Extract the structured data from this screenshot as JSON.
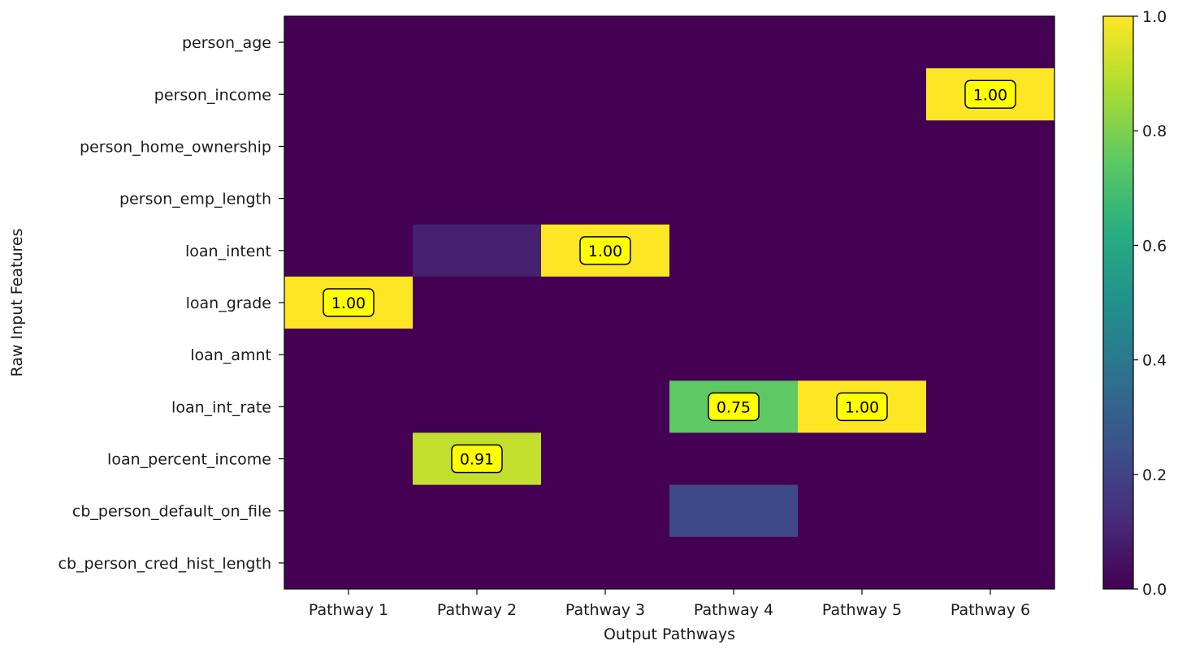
{
  "chart_data": {
    "type": "heatmap",
    "title": "",
    "xlabel": "Output Pathways",
    "ylabel": "Raw Input Features",
    "x_categories": [
      "Pathway 1",
      "Pathway 2",
      "Pathway 3",
      "Pathway 4",
      "Pathway 5",
      "Pathway 6"
    ],
    "y_categories": [
      "person_age",
      "person_income",
      "person_home_ownership",
      "person_emp_length",
      "loan_intent",
      "loan_grade",
      "loan_amnt",
      "loan_int_rate",
      "loan_percent_income",
      "cb_person_default_on_file",
      "cb_person_cred_hist_length"
    ],
    "values": [
      [
        0,
        0,
        0,
        0,
        0,
        0
      ],
      [
        0,
        0,
        0,
        0,
        0,
        1.0
      ],
      [
        0,
        0,
        0,
        0,
        0,
        0
      ],
      [
        0,
        0,
        0,
        0,
        0,
        0
      ],
      [
        0,
        0.09,
        1.0,
        0,
        0,
        0
      ],
      [
        1.0,
        0,
        0,
        0,
        0,
        0
      ],
      [
        0,
        0,
        0,
        0,
        0,
        0
      ],
      [
        0,
        0,
        0,
        0.75,
        1.0,
        0
      ],
      [
        0,
        0.91,
        0,
        0,
        0,
        0
      ],
      [
        0,
        0,
        0,
        0.22,
        0,
        0
      ],
      [
        0,
        0,
        0,
        0,
        0,
        0
      ]
    ],
    "annotations": [
      {
        "row": 1,
        "col": 5,
        "text": "1.00"
      },
      {
        "row": 4,
        "col": 2,
        "text": "1.00"
      },
      {
        "row": 5,
        "col": 0,
        "text": "1.00"
      },
      {
        "row": 7,
        "col": 3,
        "text": "0.75"
      },
      {
        "row": 7,
        "col": 4,
        "text": "1.00"
      },
      {
        "row": 8,
        "col": 1,
        "text": "0.91"
      }
    ],
    "colormap": "viridis",
    "vmin": 0.0,
    "vmax": 1.0,
    "colorbar_ticks": [
      "0.0",
      "0.2",
      "0.4",
      "0.6",
      "0.8",
      "1.0"
    ],
    "colorbar_tick_values": [
      0.0,
      0.2,
      0.4,
      0.6,
      0.8,
      1.0
    ],
    "annotation_box_color": "#ffff00",
    "grid": false
  }
}
